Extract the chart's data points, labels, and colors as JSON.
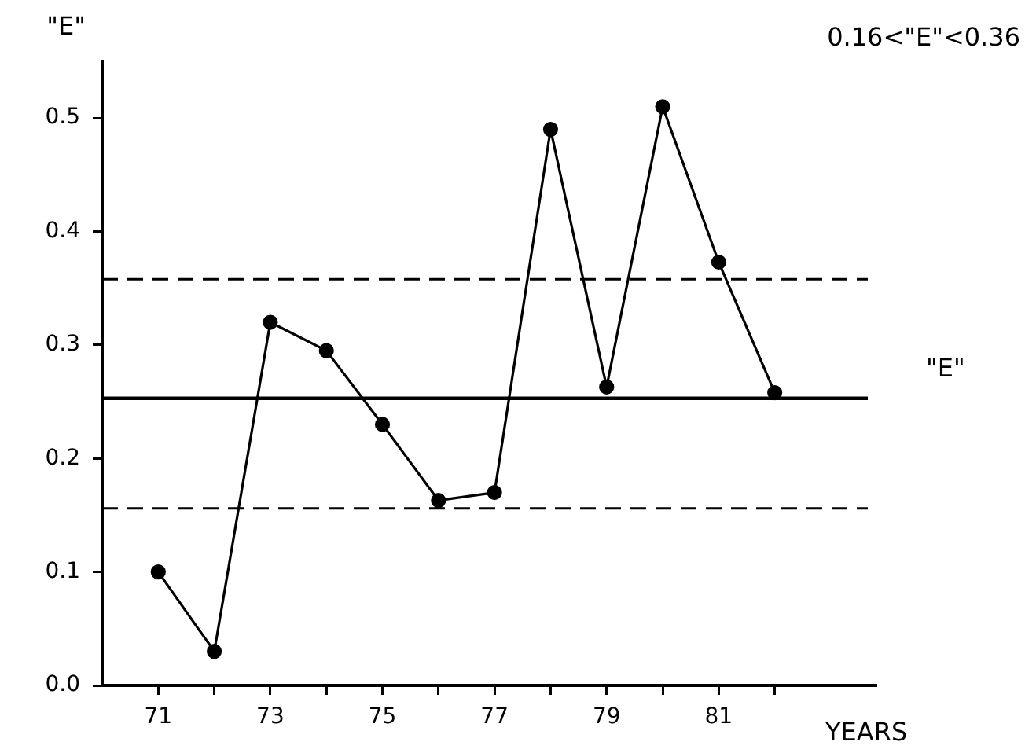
{
  "chart_data": {
    "type": "line",
    "title": "0.16<\"E\"<0.36",
    "ylabel": "\"E\"",
    "xlabel": "YEARS",
    "x": [
      71,
      72,
      73,
      74,
      75,
      76,
      77,
      78,
      79,
      80,
      81,
      82
    ],
    "series": [
      {
        "color": "#000000",
        "values": [
          0.1,
          0.03,
          0.32,
          0.295,
          0.23,
          0.163,
          0.17,
          0.49,
          0.263,
          0.51,
          0.373,
          0.258
        ]
      }
    ],
    "xlim": [
      70,
      83.8
    ],
    "xticks": [
      {
        "value": 71,
        "label": "71"
      },
      {
        "value": 72,
        "label": null
      },
      {
        "value": 73,
        "label": "73"
      },
      {
        "value": 74,
        "label": null
      },
      {
        "value": 75,
        "label": "75"
      },
      {
        "value": 76,
        "label": null
      },
      {
        "value": 77,
        "label": "77"
      },
      {
        "value": 78,
        "label": null
      },
      {
        "value": 79,
        "label": "79"
      },
      {
        "value": 80,
        "label": null
      },
      {
        "value": 81,
        "label": "81"
      },
      {
        "value": 82,
        "label": null
      }
    ],
    "ylim": [
      0,
      0.55
    ],
    "yticks": [
      {
        "value": 0,
        "label": "0.0"
      },
      0.1,
      0.2,
      0.3,
      0.4,
      0.5
    ],
    "ref_lines": [
      {
        "axis": "y",
        "value": 0.253,
        "label": "\"E\"",
        "line_style": "solid"
      },
      {
        "axis": "y",
        "value": 0.358,
        "line_style": "dashed"
      },
      {
        "axis": "y",
        "value": 0.156,
        "line_style": "dashed"
      }
    ],
    "grid": false,
    "legend": false,
    "marker": "circle",
    "line_style": "solid"
  }
}
